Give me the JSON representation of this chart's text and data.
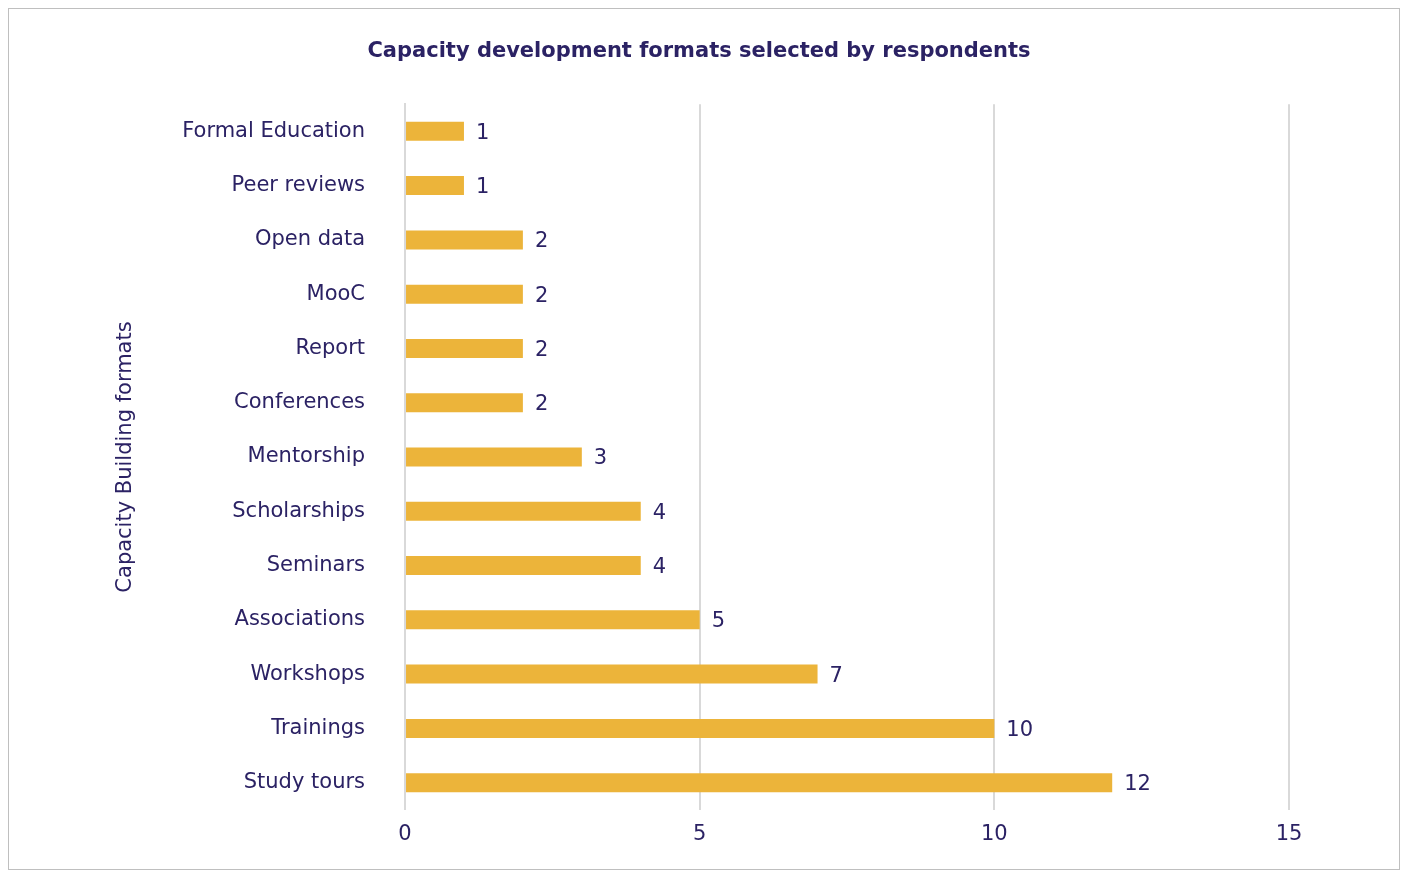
{
  "chart_data": {
    "type": "bar",
    "orientation": "horizontal",
    "title": "Capacity development formats selected by respondents",
    "ylabel": "Capacity Building formats",
    "categories": [
      "Formal Education",
      "Peer reviews",
      "Open data",
      "MooC",
      "Report",
      "Conferences",
      "Mentorship",
      "Scholarships",
      "Seminars",
      "Associations",
      "Workshops",
      "Trainings",
      "Study tours"
    ],
    "values": [
      1,
      1,
      2,
      2,
      2,
      2,
      3,
      4,
      4,
      5,
      7,
      10,
      12
    ],
    "color": "#ecb43a",
    "xlim": [
      0,
      15
    ],
    "xticks": [
      0,
      5,
      10,
      15
    ],
    "grid": "x",
    "data_labels": true,
    "legend": false
  }
}
